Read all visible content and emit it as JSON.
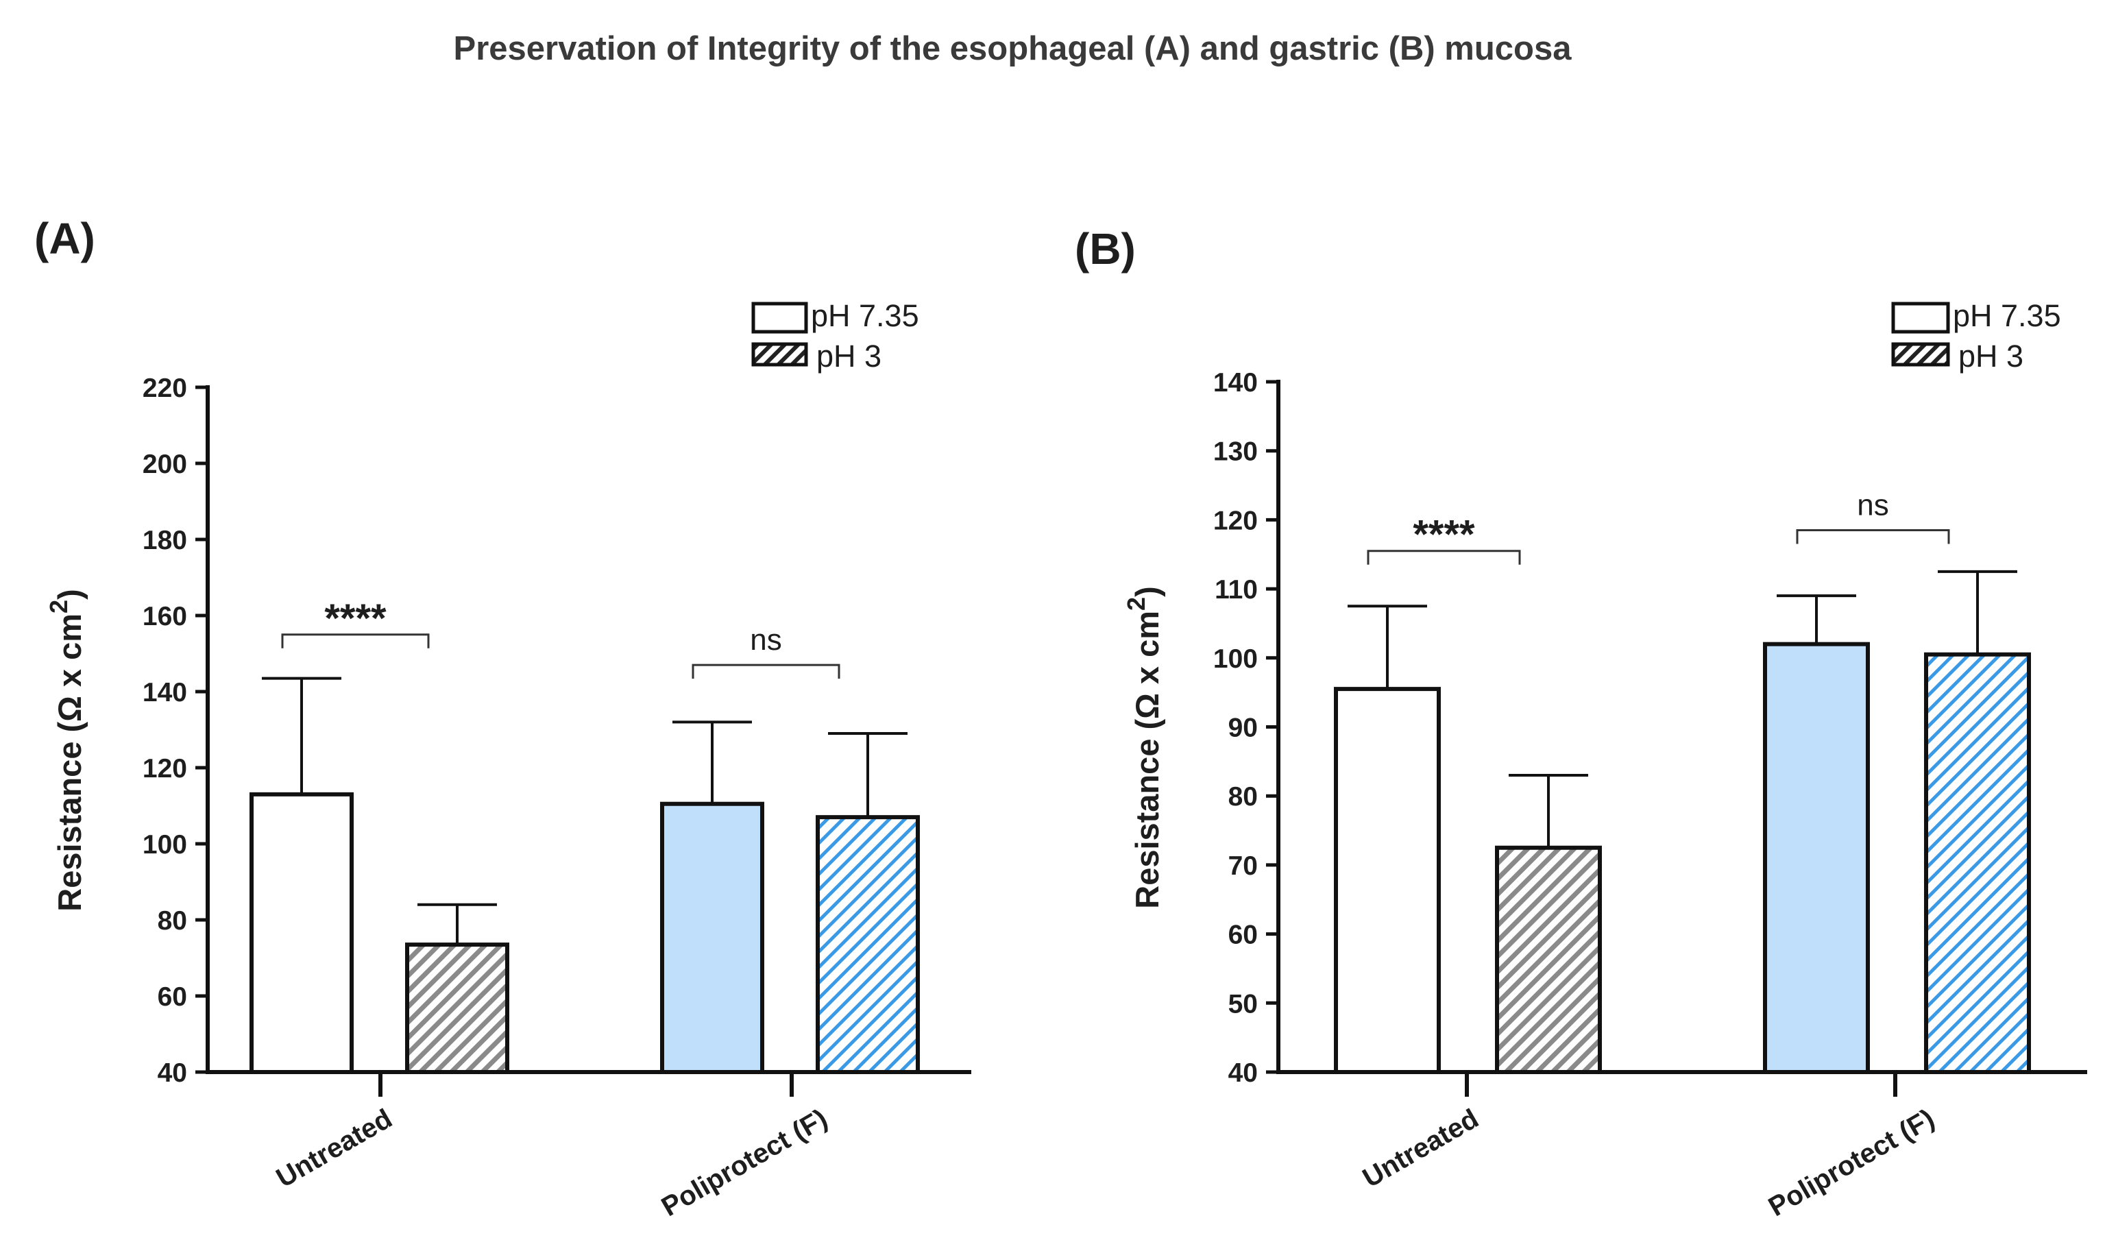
{
  "figure_title": "Preservation of Integrity of the esophageal (A) and gastric (B) mucosa",
  "colors": {
    "axis": "#111111",
    "control_fill": "#ffffff",
    "untreated_hatch": "#8a8a8a",
    "treated_fill": "#bfdffb",
    "treated_hatch": "#3b9ae6",
    "bracket": "#333333"
  },
  "legend_entries": [
    "pH 7.35",
    "pH 3"
  ],
  "chart_data": [
    {
      "type": "bar",
      "panel_label": "(A)",
      "title": "",
      "xlabel": "",
      "ylabel": "Resistance (Ω x cm",
      "ylabel_superscript": "2",
      "ylabel_close": ")",
      "ylim": [
        40,
        220
      ],
      "yticks": [
        40,
        60,
        80,
        100,
        120,
        140,
        160,
        180,
        200,
        220
      ],
      "categories": [
        "Untreated",
        "Poliprotect (F)"
      ],
      "series": [
        {
          "name": "pH 7.35",
          "values": [
            113,
            110.5
          ],
          "errors": [
            30.5,
            21.5
          ]
        },
        {
          "name": "pH 3",
          "values": [
            73.5,
            107
          ],
          "errors": [
            10.5,
            22
          ]
        }
      ],
      "annotations": [
        {
          "category": "Untreated",
          "text": "****",
          "y": 155
        },
        {
          "category": "Poliprotect (F)",
          "text": "ns",
          "y": 147
        }
      ],
      "legend_position": "top-right"
    },
    {
      "type": "bar",
      "panel_label": "(B)",
      "title": "",
      "xlabel": "",
      "ylabel": "Resistance (Ω x cm",
      "ylabel_superscript": "2",
      "ylabel_close": ")",
      "ylim": [
        40,
        140
      ],
      "yticks": [
        40,
        50,
        60,
        70,
        80,
        90,
        100,
        110,
        120,
        130,
        140
      ],
      "categories": [
        "Untreated",
        "Poliprotect (F)"
      ],
      "series": [
        {
          "name": "pH 7.35",
          "values": [
            95.5,
            102
          ],
          "errors": [
            12,
            7
          ]
        },
        {
          "name": "pH 3",
          "values": [
            72.5,
            100.5
          ],
          "errors": [
            10.5,
            12
          ]
        }
      ],
      "annotations": [
        {
          "category": "Untreated",
          "text": "****",
          "y": 115.5
        },
        {
          "category": "Poliprotect (F)",
          "text": "ns",
          "y": 118.5
        }
      ],
      "legend_position": "top-right"
    }
  ]
}
